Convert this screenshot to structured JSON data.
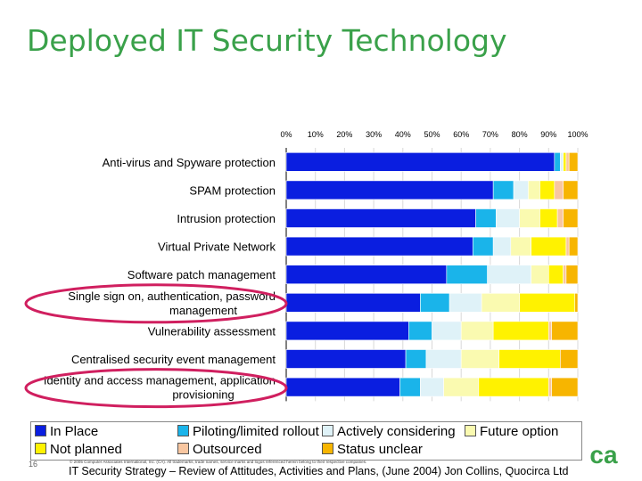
{
  "title": "Deployed IT Security Technology",
  "chart_data": {
    "type": "bar",
    "orientation": "horizontal",
    "stacked": true,
    "percent_axis_ticks": [
      "0%",
      "10%",
      "20%",
      "30%",
      "40%",
      "50%",
      "60%",
      "70%",
      "80%",
      "90%",
      "100%"
    ],
    "xlim": [
      0,
      100
    ],
    "categories": [
      "Anti-virus and Spyware protection",
      "SPAM protection",
      "Intrusion protection",
      "Virtual Private Network",
      "Software patch management",
      "Single sign on, authentication, password management",
      "Vulnerability assessment",
      "Centralised security event management",
      "Identity and access management, application provisioning"
    ],
    "category_lines": [
      [
        "Anti-virus and Spyware protection"
      ],
      [
        "SPAM protection"
      ],
      [
        "Intrusion protection"
      ],
      [
        "Virtual Private Network"
      ],
      [
        "Software patch management"
      ],
      [
        "Single sign on, authentication, password",
        "management"
      ],
      [
        "Vulnerability assessment"
      ],
      [
        "Centralised security event management"
      ],
      [
        "Identity and access management, application",
        "provisioning"
      ]
    ],
    "highlighted_categories": [
      5,
      8
    ],
    "series": [
      {
        "name": "In Place",
        "color": "#0a1ee0",
        "values": [
          92,
          71,
          65,
          64,
          55,
          46,
          42,
          41,
          39
        ]
      },
      {
        "name": "Piloting/limited rollout",
        "color": "#1ab4ea",
        "values": [
          2,
          7,
          7,
          7,
          14,
          10,
          8,
          7,
          7
        ]
      },
      {
        "name": "Actively considering",
        "color": "#dff2f8",
        "values": [
          1,
          5,
          8,
          6,
          15,
          11,
          10,
          12,
          8
        ]
      },
      {
        "name": "Future option",
        "color": "#fafab0",
        "values": [
          0,
          4,
          7,
          7,
          6,
          13,
          11,
          13,
          12
        ]
      },
      {
        "name": "Not planned",
        "color": "#fff200",
        "values": [
          1,
          5,
          6,
          12,
          5,
          19,
          19,
          21,
          24
        ]
      },
      {
        "name": "Outsourced",
        "color": "#f8c6a0",
        "values": [
          1,
          3,
          2,
          1,
          1,
          0,
          1,
          0,
          1
        ]
      },
      {
        "name": "Status unclear",
        "color": "#f7b500",
        "values": [
          3,
          5,
          5,
          3,
          4,
          1,
          9,
          6,
          9
        ]
      }
    ]
  },
  "legend_rows": [
    [
      {
        "label": "In Place",
        "color": "#0a1ee0"
      },
      {
        "label": "Piloting/limited rollout",
        "color": "#1ab4ea"
      },
      {
        "label": "Actively considering",
        "color": "#dff2f8"
      },
      {
        "label": "Future option",
        "color": "#fafab0"
      }
    ],
    [
      {
        "label": "Not planned",
        "color": "#fff200"
      },
      {
        "label": "Outsourced",
        "color": "#f8c6a0"
      },
      {
        "label": "Status unclear",
        "color": "#f7b500"
      }
    ]
  ],
  "footer": {
    "page_number": "16",
    "copyright": "© 2005 Computer Associates International, Inc. (CA). All trademarks, trade names, service marks and logos referenced herein belong to their respective companies.",
    "source": "IT Security Strategy – Review of Attitudes, Activities and Plans,  (June 2004) Jon Collins, Quocirca Ltd"
  },
  "logo": {
    "text": "ca",
    "color": "#3aa14a"
  }
}
